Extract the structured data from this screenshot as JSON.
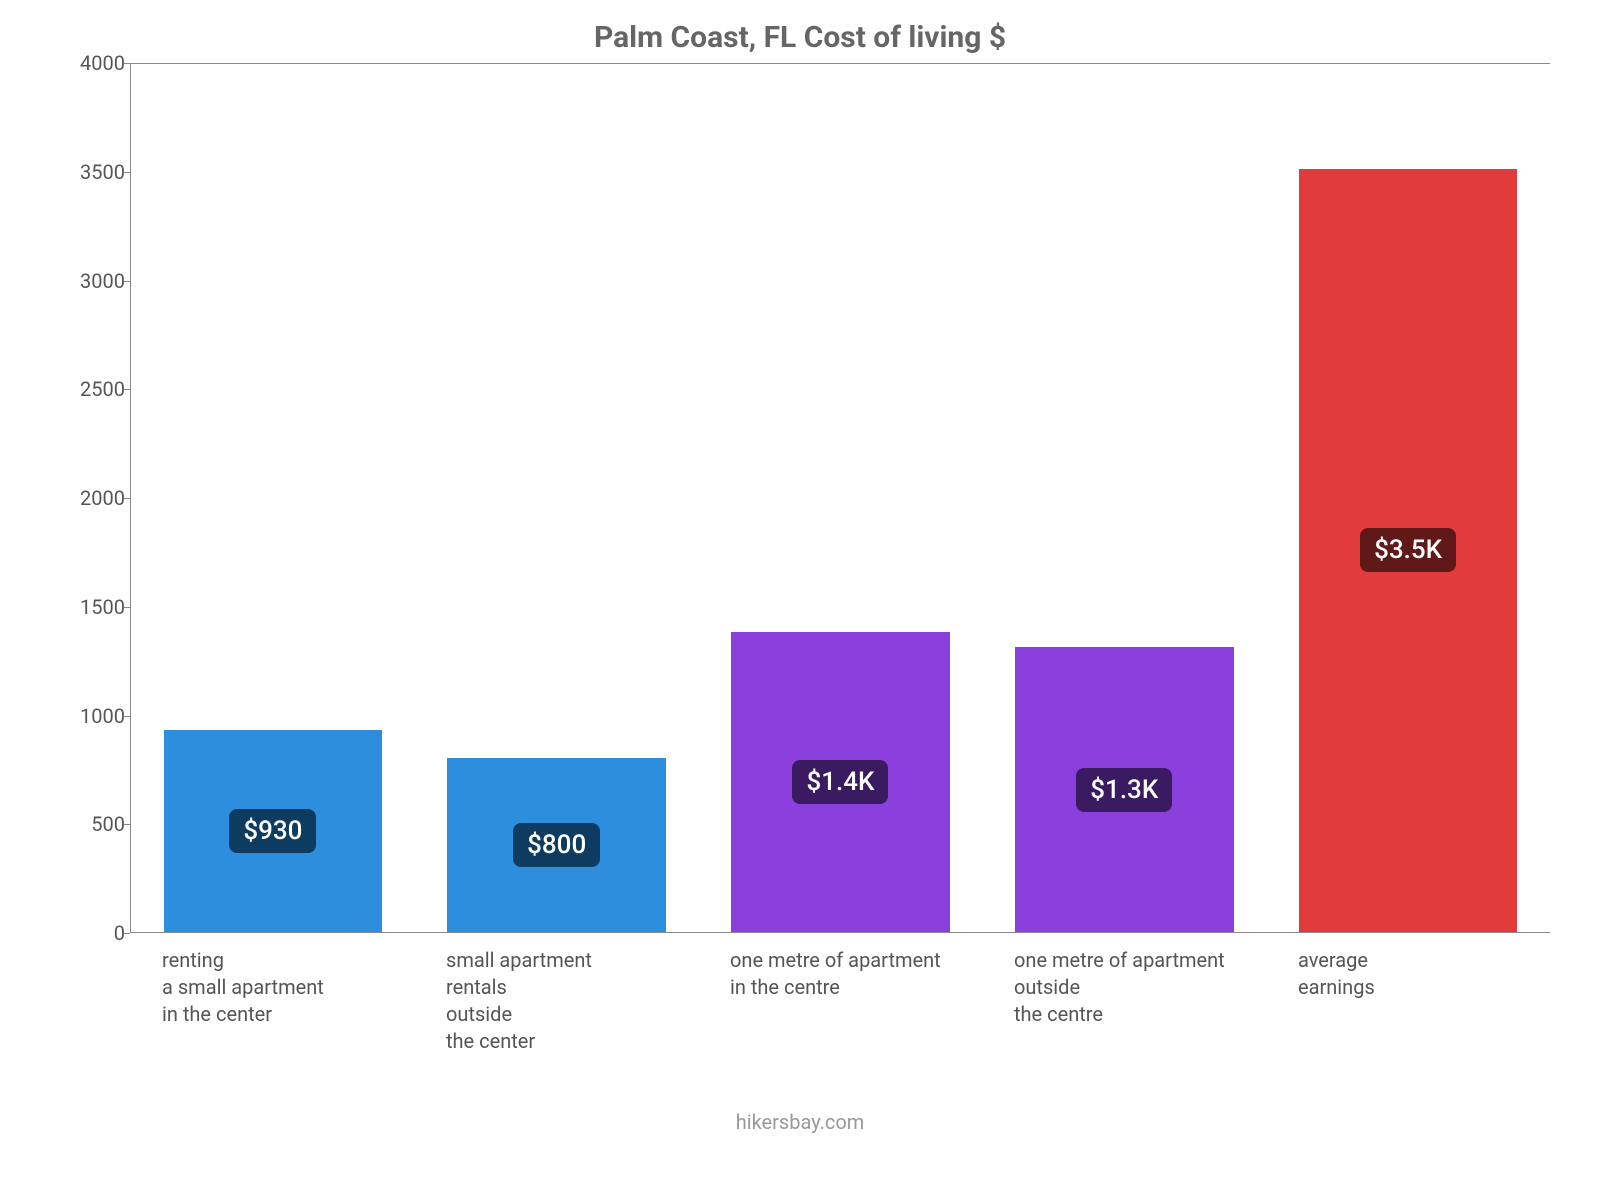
{
  "chart": {
    "type": "bar",
    "title": "Palm Coast, FL Cost of living $",
    "title_fontsize": 30,
    "title_color": "#666666",
    "footer": "hikersbay.com",
    "footer_color": "#999999",
    "background_color": "#ffffff",
    "axis_color": "#888888",
    "tick_label_color": "#555555",
    "tick_label_fontsize": 20,
    "ylim": [
      0,
      4000
    ],
    "ytick_step": 500,
    "yticks": [
      0,
      500,
      1000,
      1500,
      2000,
      2500,
      3000,
      3500,
      4000
    ],
    "grid_y_at": 4000,
    "bar_width_ratio": 0.77,
    "bars": [
      {
        "label_lines": [
          "renting",
          "a small apartment",
          "in the center"
        ],
        "value": 930,
        "bar_color": "#2e8ede",
        "badge_text": "$930",
        "badge_bg": "#0e3c61",
        "badge_text_color": "#ffffff"
      },
      {
        "label_lines": [
          "small apartment",
          "rentals",
          "outside",
          "the center"
        ],
        "value": 800,
        "bar_color": "#2e8ede",
        "badge_text": "$800",
        "badge_bg": "#0e3c61",
        "badge_text_color": "#ffffff"
      },
      {
        "label_lines": [
          "one metre of apartment",
          "in the centre"
        ],
        "value": 1380,
        "bar_color": "#8b40de",
        "badge_text": "$1.4K",
        "badge_bg": "#3a1a61",
        "badge_text_color": "#ffffff"
      },
      {
        "label_lines": [
          "one metre of apartment",
          "outside",
          "the centre"
        ],
        "value": 1310,
        "bar_color": "#8b40de",
        "badge_text": "$1.3K",
        "badge_bg": "#3a1a61",
        "badge_text_color": "#ffffff"
      },
      {
        "label_lines": [
          "average",
          "earnings"
        ],
        "value": 3510,
        "bar_color": "#e23b3b",
        "badge_text": "$3.5K",
        "badge_bg": "#611818",
        "badge_text_color": "#ffffff"
      }
    ]
  }
}
